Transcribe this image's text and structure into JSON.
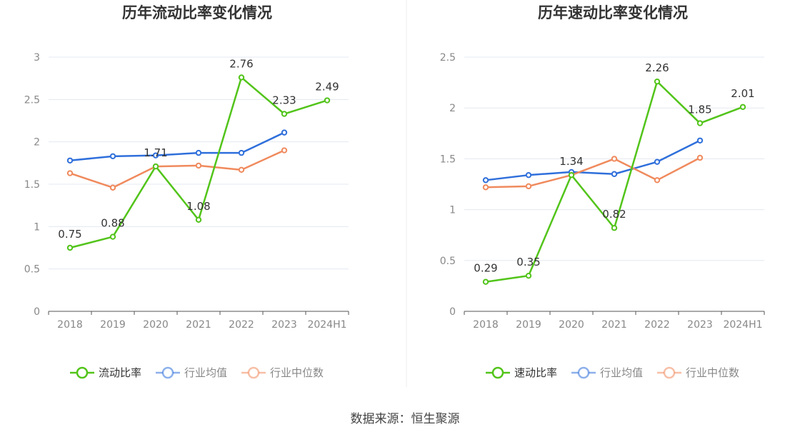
{
  "source_label": "数据来源：恒生聚源",
  "colors": {
    "company": "#52c41a",
    "industry_avg": "#2f6fdb",
    "industry_median": "#f08a5d",
    "grid": "#e3e8f0",
    "axis": "#555555",
    "tick_text": "#888888",
    "title_text": "#333333",
    "label_text": "#333333"
  },
  "chart_data": [
    {
      "type": "line",
      "title": "历年流动比率变化情况",
      "categories": [
        "2018",
        "2019",
        "2020",
        "2021",
        "2022",
        "2023",
        "2024H1"
      ],
      "ylim": [
        0,
        3
      ],
      "yticks": [
        "0",
        "0.5",
        "1",
        "1.5",
        "2",
        "2.5",
        "3"
      ],
      "ytick_values": [
        0,
        0.5,
        1,
        1.5,
        2,
        2.5,
        3
      ],
      "grid": true,
      "legend_position": "bottom",
      "series": [
        {
          "name": "流动比率",
          "key": "company",
          "values": [
            0.75,
            0.88,
            1.71,
            1.08,
            2.76,
            2.33,
            2.49
          ],
          "labels": [
            "0.75",
            "0.88",
            "1.71",
            "1.08",
            "2.76",
            "2.33",
            "2.49"
          ]
        },
        {
          "name": "行业均值",
          "key": "industry_avg",
          "values": [
            1.78,
            1.83,
            1.84,
            1.87,
            1.87,
            2.11,
            null
          ]
        },
        {
          "name": "行业中位数",
          "key": "industry_median",
          "values": [
            1.63,
            1.46,
            1.71,
            1.72,
            1.67,
            1.9,
            null
          ]
        }
      ]
    },
    {
      "type": "line",
      "title": "历年速动比率变化情况",
      "categories": [
        "2018",
        "2019",
        "2020",
        "2021",
        "2022",
        "2023",
        "2024H1"
      ],
      "ylim": [
        0,
        2.5
      ],
      "yticks": [
        "0",
        "0.5",
        "1",
        "1.5",
        "2",
        "2.5"
      ],
      "ytick_values": [
        0,
        0.5,
        1,
        1.5,
        2,
        2.5
      ],
      "grid": true,
      "legend_position": "bottom",
      "series": [
        {
          "name": "速动比率",
          "key": "company",
          "values": [
            0.29,
            0.35,
            1.34,
            0.82,
            2.26,
            1.85,
            2.01
          ],
          "labels": [
            "0.29",
            "0.35",
            "1.34",
            "0.82",
            "2.26",
            "1.85",
            "2.01"
          ]
        },
        {
          "name": "行业均值",
          "key": "industry_avg",
          "values": [
            1.29,
            1.34,
            1.37,
            1.35,
            1.47,
            1.68,
            null
          ]
        },
        {
          "name": "行业中位数",
          "key": "industry_median",
          "values": [
            1.22,
            1.23,
            1.34,
            1.5,
            1.29,
            1.51,
            null
          ]
        }
      ]
    }
  ]
}
